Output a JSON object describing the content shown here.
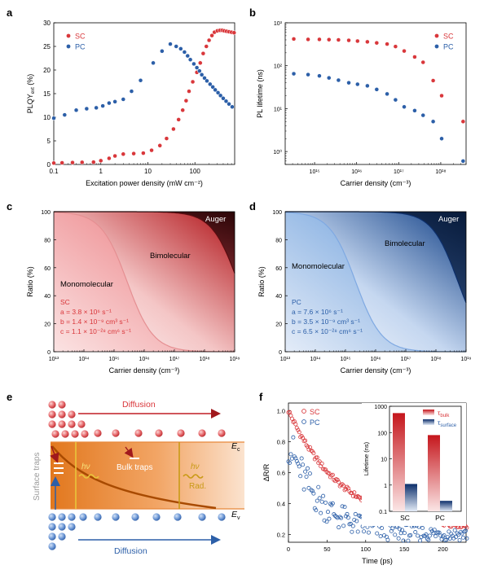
{
  "colors": {
    "sc": "#d9373b",
    "pc": "#2c5fa8",
    "dark_red": "#8b0d12",
    "dark_blue": "#0d2f6b",
    "orange": "#e8883a",
    "gold": "#c99a16"
  },
  "chart_data": [
    {
      "panel": "a",
      "type": "scatter",
      "xlabel": "Excitation power density (mW cm⁻²)",
      "ylabel": "PLQY",
      "ylabel_sub": "ext",
      "ylabel_unit": " (%)",
      "xscale": "log",
      "xlim": [
        0.1,
        700
      ],
      "ylim": [
        0,
        30
      ],
      "xticks": [
        0.1,
        1,
        10,
        100
      ],
      "xtick_labels": [
        "0.1",
        "1",
        "10",
        "100"
      ],
      "yticks": [
        0,
        5,
        10,
        15,
        20,
        25,
        30
      ],
      "ytick_labels": [
        "0",
        "5",
        "10",
        "15",
        "20",
        "25",
        "30"
      ],
      "legend": "top-left",
      "series": [
        {
          "name": "SC",
          "color": "sc",
          "points": [
            [
              0.1,
              0.3
            ],
            [
              0.15,
              0.35
            ],
            [
              0.25,
              0.4
            ],
            [
              0.4,
              0.45
            ],
            [
              0.7,
              0.5
            ],
            [
              1,
              0.8
            ],
            [
              1.5,
              1.3
            ],
            [
              2,
              1.8
            ],
            [
              3,
              2.2
            ],
            [
              5,
              2.3
            ],
            [
              8,
              2.4
            ],
            [
              12,
              3.0
            ],
            [
              18,
              4.0
            ],
            [
              25,
              5.5
            ],
            [
              35,
              7.5
            ],
            [
              45,
              9.5
            ],
            [
              55,
              11.5
            ],
            [
              65,
              13.5
            ],
            [
              75,
              15.5
            ],
            [
              90,
              17.5
            ],
            [
              110,
              19.5
            ],
            [
              130,
              21.5
            ],
            [
              150,
              23.5
            ],
            [
              175,
              25.0
            ],
            [
              200,
              26.3
            ],
            [
              230,
              27.3
            ],
            [
              260,
              28.0
            ],
            [
              300,
              28.3
            ],
            [
              340,
              28.4
            ],
            [
              380,
              28.4
            ],
            [
              420,
              28.3
            ],
            [
              470,
              28.2
            ],
            [
              530,
              28.1
            ],
            [
              600,
              28.0
            ],
            [
              680,
              27.9
            ]
          ]
        },
        {
          "name": "PC",
          "color": "pc",
          "points": [
            [
              0.1,
              9.8
            ],
            [
              0.17,
              10.5
            ],
            [
              0.3,
              11.5
            ],
            [
              0.5,
              11.8
            ],
            [
              0.8,
              12.0
            ],
            [
              1.1,
              12.4
            ],
            [
              1.5,
              13.0
            ],
            [
              2,
              13.3
            ],
            [
              3,
              13.8
            ],
            [
              4.5,
              15.5
            ],
            [
              7,
              17.8
            ],
            [
              13,
              21.5
            ],
            [
              20,
              24.0
            ],
            [
              30,
              25.5
            ],
            [
              40,
              25.0
            ],
            [
              50,
              24.5
            ],
            [
              60,
              23.8
            ],
            [
              70,
              23.0
            ],
            [
              80,
              22.2
            ],
            [
              95,
              21.3
            ],
            [
              110,
              20.5
            ],
            [
              125,
              19.8
            ],
            [
              140,
              19.0
            ],
            [
              160,
              18.3
            ],
            [
              180,
              17.7
            ],
            [
              210,
              17.0
            ],
            [
              240,
              16.4
            ],
            [
              270,
              15.8
            ],
            [
              310,
              15.2
            ],
            [
              350,
              14.6
            ],
            [
              400,
              14.0
            ],
            [
              460,
              13.4
            ],
            [
              530,
              12.8
            ],
            [
              620,
              12.2
            ]
          ]
        }
      ]
    },
    {
      "panel": "b",
      "type": "scatter",
      "xlabel": "Carrier density (cm⁻³)",
      "ylabel": "PL lifetime (ns)",
      "xscale": "log",
      "yscale": "log",
      "xlim": [
        200000000000000.0,
        4e+18
      ],
      "ylim": [
        0.5,
        1000
      ],
      "xticks": [
        1000000000000000.0,
        1e+16,
        1e+17,
        1e+18
      ],
      "xtick_labels": [
        "10¹⁵",
        "10¹⁶",
        "10¹⁷",
        "10¹⁸"
      ],
      "yticks": [
        1,
        10,
        100,
        1000
      ],
      "ytick_labels": [
        "10⁰",
        "10¹",
        "10²",
        "10³"
      ],
      "legend": "top-right",
      "series": [
        {
          "name": "SC",
          "color": "sc",
          "points": [
            [
              320000000000000.0,
              420
            ],
            [
              700000000000000.0,
              410
            ],
            [
              1300000000000000.0,
              410
            ],
            [
              2200000000000000.0,
              405
            ],
            [
              3700000000000000.0,
              400
            ],
            [
              6500000000000000.0,
              390
            ],
            [
              1.05e+16,
              375
            ],
            [
              1.8e+16,
              360
            ],
            [
              3e+16,
              340
            ],
            [
              5.3e+16,
              320
            ],
            [
              8.4e+16,
              280
            ],
            [
              1.35e+17,
              220
            ],
            [
              2.4e+17,
              160
            ],
            [
              3.8e+17,
              120
            ],
            [
              6.6e+17,
              45
            ],
            [
              1.05e+18,
              20
            ],
            [
              3.4e+18,
              5
            ]
          ]
        },
        {
          "name": "PC",
          "color": "pc",
          "points": [
            [
              320000000000000.0,
              65
            ],
            [
              700000000000000.0,
              62
            ],
            [
              1300000000000000.0,
              58
            ],
            [
              2200000000000000.0,
              52
            ],
            [
              3700000000000000.0,
              46
            ],
            [
              6500000000000000.0,
              40
            ],
            [
              1.05e+16,
              37
            ],
            [
              1.8e+16,
              34
            ],
            [
              3e+16,
              28
            ],
            [
              5.3e+16,
              22
            ],
            [
              8.4e+16,
              16
            ],
            [
              1.35e+17,
              11
            ],
            [
              2.4e+17,
              9
            ],
            [
              3.8e+17,
              7
            ],
            [
              6.6e+17,
              5
            ],
            [
              1.05e+18,
              2
            ],
            [
              3.4e+18,
              0.6
            ]
          ]
        }
      ]
    },
    {
      "panel": "c",
      "type": "area",
      "xlabel": "Carrier density (cm⁻³)",
      "ylabel": "Ratio (%)",
      "xscale": "log",
      "xlim": [
        10000000000000.0,
        1e+19
      ],
      "ylim": [
        0,
        100
      ],
      "xticks": [
        10000000000000.0,
        100000000000000.0,
        1000000000000000.0,
        1e+16,
        1e+17,
        1e+18,
        1e+19
      ],
      "xtick_labels": [
        "10¹³",
        "10¹⁴",
        "10¹⁵",
        "10¹⁶",
        "10¹⁷",
        "10¹⁸",
        "10¹⁹"
      ],
      "yticks": [
        0,
        20,
        40,
        60,
        80,
        100
      ],
      "ytick_labels": [
        "0",
        "20",
        "40",
        "60",
        "80",
        "100"
      ],
      "regions": [
        "Monomolecular",
        "Bimolecular",
        "Auger"
      ],
      "params": {
        "a": 3800000.0,
        "b": 1.4e-09,
        "c": 1.1e-28
      },
      "annotation": [
        "SC",
        "a = 3.8 × 10⁶ s⁻¹",
        "b = 1.4 × 10⁻⁹ cm³ s⁻¹",
        "c = 1.1 × 10⁻²⁸ cm⁶ s⁻¹"
      ]
    },
    {
      "panel": "d",
      "type": "area",
      "xlabel": "Carrier density (cm⁻³)",
      "ylabel": "Ratio (%)",
      "xscale": "log",
      "xlim": [
        10000000000000.0,
        1e+19
      ],
      "ylim": [
        0,
        100
      ],
      "xticks": [
        10000000000000.0,
        100000000000000.0,
        1000000000000000.0,
        1e+16,
        1e+17,
        1e+18,
        1e+19
      ],
      "xtick_labels": [
        "10¹³",
        "10¹⁴",
        "10¹⁵",
        "10¹⁶",
        "10¹⁷",
        "10¹⁸",
        "10¹⁹"
      ],
      "yticks": [
        0,
        20,
        40,
        60,
        80,
        100
      ],
      "ytick_labels": [
        "0",
        "20",
        "40",
        "60",
        "80",
        "100"
      ],
      "regions": [
        "Monomolecular",
        "Bimolecular",
        "Auger"
      ],
      "params": {
        "a": 7600000.0,
        "b": 3.5e-09,
        "c": 6.5e-28
      },
      "annotation": [
        "PC",
        "a = 7.6 × 10⁶ s⁻¹",
        "b = 3.5 × 10⁻⁹ cm³ s⁻¹",
        "c = 6.5 × 10⁻²⁸ cm⁶ s⁻¹"
      ]
    },
    {
      "panel": "f",
      "type": "scatter",
      "xlabel": "Time (ps)",
      "ylabel": "ΔR/R",
      "xlim": [
        0,
        230
      ],
      "ylim": [
        0.15,
        1.05
      ],
      "xticks": [
        0,
        50,
        100,
        150,
        200
      ],
      "xtick_labels": [
        "0",
        "50",
        "100",
        "150",
        "200"
      ],
      "yticks": [
        0.2,
        0.4,
        0.6,
        0.8,
        1.0
      ],
      "ytick_labels": [
        "0.2",
        "0.4",
        "0.6",
        "0.8",
        "1.0"
      ],
      "legend": "top-left",
      "series": [
        {
          "name": "SC",
          "color": "sc",
          "model": {
            "amplitude": 0.77,
            "tau_ps": 70,
            "offset": 0.23
          }
        },
        {
          "name": "PC",
          "color": "pc",
          "model": {
            "amplitude": 0.6,
            "tau_ps": 40,
            "offset": 0.2
          }
        }
      ],
      "inset": {
        "type": "bar",
        "ylabel": "Lifetime (ns)",
        "yscale": "log",
        "ylim": [
          0.1,
          1000
        ],
        "yticks": [
          0.1,
          1,
          10,
          100,
          1000
        ],
        "ytick_labels": [
          "0.1",
          "1",
          "10",
          "100",
          "1000"
        ],
        "categories": [
          "SC",
          "PC"
        ],
        "legend": [
          "τ",
          "bulk",
          "τ",
          "surface"
        ],
        "series": [
          {
            "name": "bulk",
            "values": [
              550,
              80
            ]
          },
          {
            "name": "surface",
            "values": [
              1.1,
              0.25
            ]
          }
        ]
      }
    }
  ],
  "panels": {
    "a": "a",
    "b": "b",
    "c": "c",
    "d": "d",
    "e": "e",
    "f": "f"
  },
  "legend_text": {
    "sc": "SC",
    "pc": "PC"
  },
  "diagram_e": {
    "diffusion_top": "Diffusion",
    "diffusion_bottom": "Diffusion",
    "ec": "E",
    "ec_sub": "c",
    "ev": "E",
    "ev_sub": "v",
    "surface_traps": "Surface traps",
    "bulk_traps": "Bulk traps",
    "hv": "hν",
    "rad": "Rad."
  }
}
